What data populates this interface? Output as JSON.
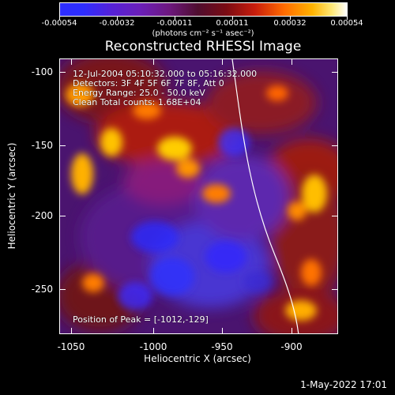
{
  "colorbar": {
    "ticks": [
      "-0.00054",
      "-0.00032",
      "-0.00011",
      "0.00011",
      "0.00032",
      "0.00054"
    ],
    "unit_label": "(photons cm⁻² s⁻¹ asec⁻²)"
  },
  "plot": {
    "title": "Reconstructed RHESSI Image",
    "overlay_lines": [
      "12-Jul-2004 05:10:32.000 to 05:16:32.000",
      "Detectors: 3F 4F 5F 6F 7F 8F, Att 0",
      "Energy Range: 25.0 - 50.0 keV",
      "Clean     Total counts: 1.68E+04"
    ],
    "peak_label": "Position of Peak = [-1012,-129]",
    "x_axis": {
      "label": "Heliocentric X (arcsec)",
      "ticks": [
        "-1050",
        "-1000",
        "-950",
        "-900"
      ]
    },
    "y_axis": {
      "label": "Heliocentric Y (arcsec)",
      "ticks": [
        "-100",
        "-150",
        "-200",
        "-250"
      ]
    }
  },
  "footer": {
    "timestamp": "1-May-2022 17:01"
  }
}
